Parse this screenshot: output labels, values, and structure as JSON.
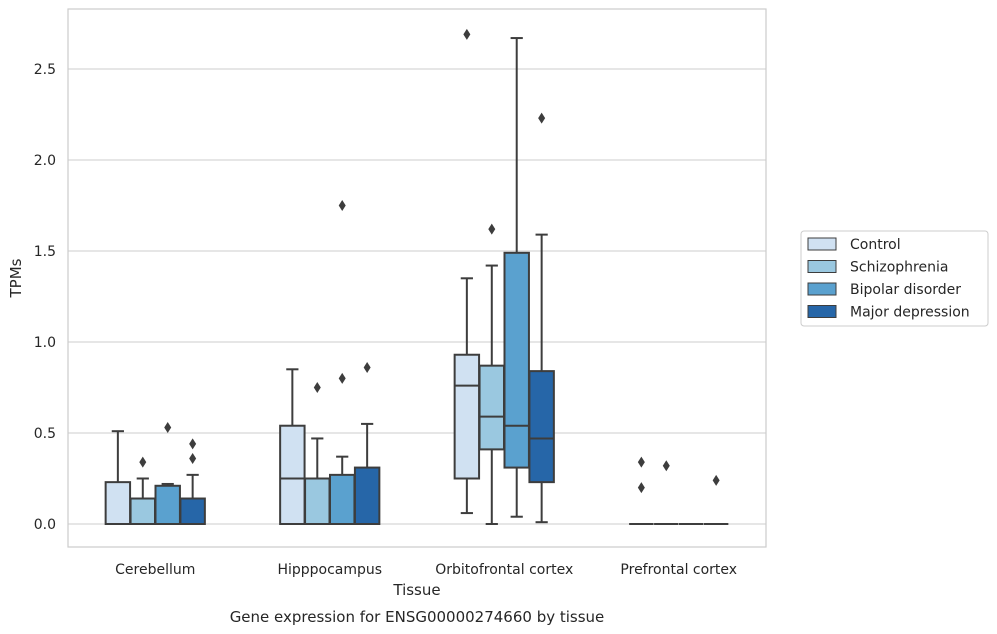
{
  "chart_data": {
    "type": "box",
    "title": "",
    "xlabel": "Tissue",
    "ylabel": "TPMs",
    "caption": "Gene expression for ENSG00000274660 by tissue",
    "ylim": [
      -0.13,
      2.83
    ],
    "yticks": [
      "0.0",
      "0.5",
      "1.0",
      "1.5",
      "2.0",
      "2.5"
    ],
    "ytick_values": [
      0,
      0.5,
      1.0,
      1.5,
      2.0,
      2.5
    ],
    "grid": "horizontal",
    "legend_position": "right",
    "categories": [
      "Cerebellum",
      "Hipppocampus",
      "Orbitofrontal cortex",
      "Prefrontal cortex"
    ],
    "series": [
      {
        "name": "Control",
        "color": "#d0e1f2",
        "boxes": [
          {
            "whisker_low": 0,
            "q1": 0,
            "median": 0,
            "q3": 0.23,
            "whisker_high": 0.51,
            "outliers": []
          },
          {
            "whisker_low": 0,
            "q1": 0,
            "median": 0.25,
            "q3": 0.54,
            "whisker_high": 0.85,
            "outliers": []
          },
          {
            "whisker_low": 0.06,
            "q1": 0.25,
            "median": 0.76,
            "q3": 0.93,
            "whisker_high": 1.35,
            "outliers": [
              2.69
            ]
          },
          {
            "whisker_low": 0,
            "q1": 0,
            "median": 0,
            "q3": 0,
            "whisker_high": 0,
            "outliers": [
              0.2,
              0.34
            ]
          }
        ]
      },
      {
        "name": "Schizophrenia",
        "color": "#9ac8e0",
        "boxes": [
          {
            "whisker_low": 0,
            "q1": 0,
            "median": 0,
            "q3": 0.14,
            "whisker_high": 0.25,
            "outliers": [
              0.34
            ]
          },
          {
            "whisker_low": 0,
            "q1": 0,
            "median": 0.25,
            "q3": 0.25,
            "whisker_high": 0.47,
            "outliers": [
              0.75
            ]
          },
          {
            "whisker_low": 0,
            "q1": 0.41,
            "median": 0.59,
            "q3": 0.87,
            "whisker_high": 1.42,
            "outliers": [
              1.62
            ]
          },
          {
            "whisker_low": 0,
            "q1": 0,
            "median": 0,
            "q3": 0,
            "whisker_high": 0,
            "outliers": [
              0.32
            ]
          }
        ]
      },
      {
        "name": "Bipolar disorder",
        "color": "#5aa1cf",
        "boxes": [
          {
            "whisker_low": 0,
            "q1": 0,
            "median": 0,
            "q3": 0.21,
            "whisker_high": 0.22,
            "outliers": [
              0.53
            ]
          },
          {
            "whisker_low": 0,
            "q1": 0,
            "median": 0,
            "q3": 0.27,
            "whisker_high": 0.37,
            "outliers": [
              0.8,
              1.75
            ]
          },
          {
            "whisker_low": 0.04,
            "q1": 0.31,
            "median": 0.54,
            "q3": 1.49,
            "whisker_high": 2.67,
            "outliers": []
          },
          {
            "whisker_low": 0,
            "q1": 0,
            "median": 0,
            "q3": 0,
            "whisker_high": 0,
            "outliers": []
          }
        ]
      },
      {
        "name": "Major depression",
        "color": "#2666a8",
        "boxes": [
          {
            "whisker_low": 0,
            "q1": 0,
            "median": 0,
            "q3": 0.14,
            "whisker_high": 0.27,
            "outliers": [
              0.36,
              0.44
            ]
          },
          {
            "whisker_low": 0,
            "q1": 0,
            "median": 0,
            "q3": 0.31,
            "whisker_high": 0.55,
            "outliers": [
              0.86
            ]
          },
          {
            "whisker_low": 0.01,
            "q1": 0.23,
            "median": 0.47,
            "q3": 0.84,
            "whisker_high": 1.59,
            "outliers": [
              2.23
            ]
          },
          {
            "whisker_low": 0,
            "q1": 0,
            "median": 0,
            "q3": 0,
            "whisker_high": 0,
            "outliers": [
              0.24
            ]
          }
        ]
      }
    ]
  }
}
